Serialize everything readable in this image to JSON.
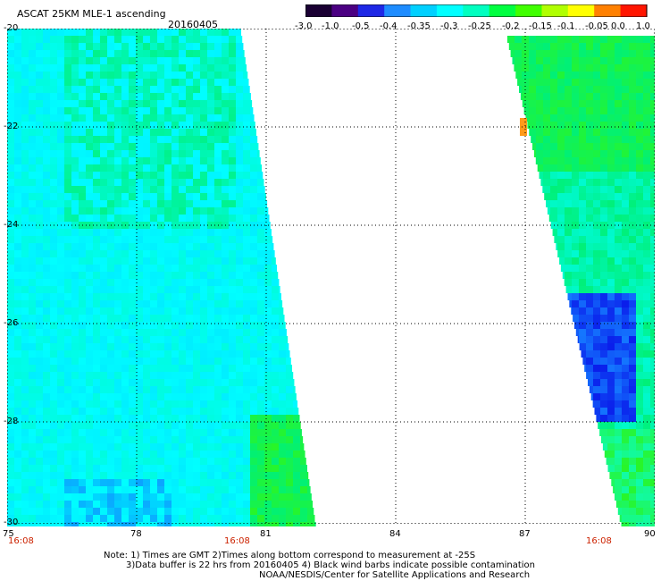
{
  "header": {
    "title": "ASCAT 25KM MLE-1 ascending",
    "date": "20160405"
  },
  "colorbar": {
    "labels": [
      "-3.0",
      "-1.0",
      "-0.5",
      "-0.4",
      "-0.35",
      "-0.3",
      "-0.25",
      "-0.2",
      "-0.15",
      "-0.1",
      "-0.05",
      "0.0",
      "1.0"
    ],
    "colors": [
      "#1a0033",
      "#4b0082",
      "#1e28e6",
      "#1e8cff",
      "#00d0ff",
      "#00ffff",
      "#00ffc0",
      "#00ff40",
      "#40ff00",
      "#b0ff00",
      "#ffff00",
      "#ff8000",
      "#ff1500"
    ]
  },
  "map": {
    "lat_labels": [
      "-20",
      "-22",
      "-24",
      "-26",
      "-28",
      "-30"
    ],
    "lon_labels": [
      "75",
      "78",
      "81",
      "84",
      "87",
      "90"
    ],
    "time_labels": [
      "16:08",
      "16:08",
      "16:08"
    ]
  },
  "notes": {
    "line1": "Note: 1) Times are GMT 2)Times along bottom correspond to measurement at -25S",
    "line2": "3)Data buffer is 22 hrs from 20160405 4) Black wind barbs indicate possible contamination",
    "line3": "NOAA/NESDIS/Center for Satellite Applications and Research"
  }
}
